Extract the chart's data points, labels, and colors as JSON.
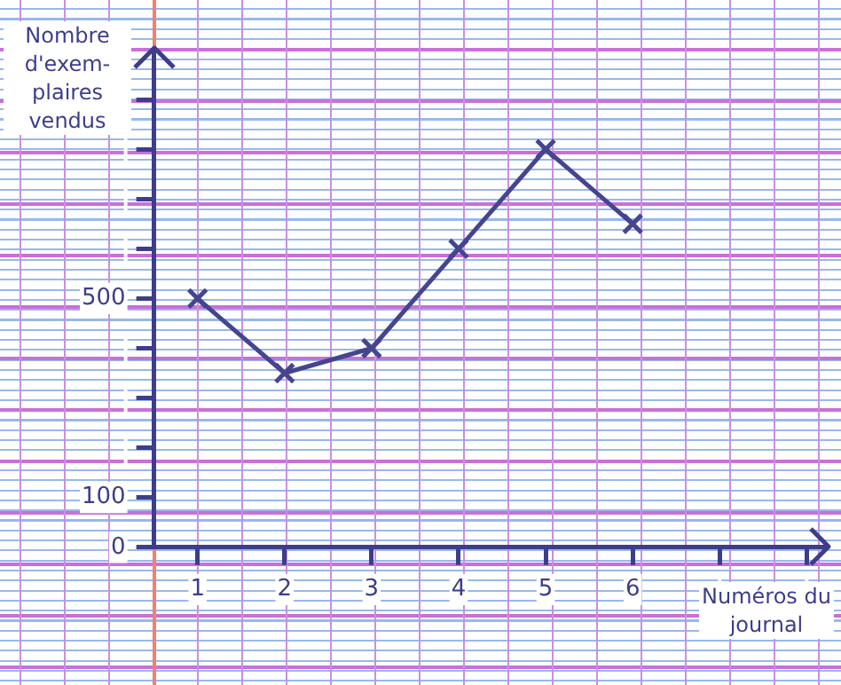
{
  "chart_data": {
    "type": "line",
    "xlabel": "Numéros du journal",
    "ylabel": "Nombre d'exem-plaires vendus",
    "x": [
      1,
      2,
      3,
      4,
      5,
      6
    ],
    "series": [
      {
        "color": "#45458f",
        "values": [
          500,
          350,
          400,
          600,
          800,
          650
        ]
      }
    ],
    "xlim": [
      0.5,
      8.2
    ],
    "xticks": [
      1,
      2,
      3,
      4,
      5,
      6,
      {
        "value": 7,
        "label": null
      },
      {
        "value": 8,
        "label": null
      }
    ],
    "ylim": [
      0,
      1000
    ],
    "yticks": [
      0,
      100,
      {
        "value": 200,
        "label": null
      },
      {
        "value": 300,
        "label": null
      },
      {
        "value": 400,
        "label": null
      },
      500,
      {
        "value": 600,
        "label": null
      },
      {
        "value": 700,
        "label": null
      },
      {
        "value": 800,
        "label": null
      },
      {
        "value": 900,
        "label": null
      }
    ],
    "marker": "cross",
    "line_style": "solid",
    "grid": false,
    "legend": false
  }
}
